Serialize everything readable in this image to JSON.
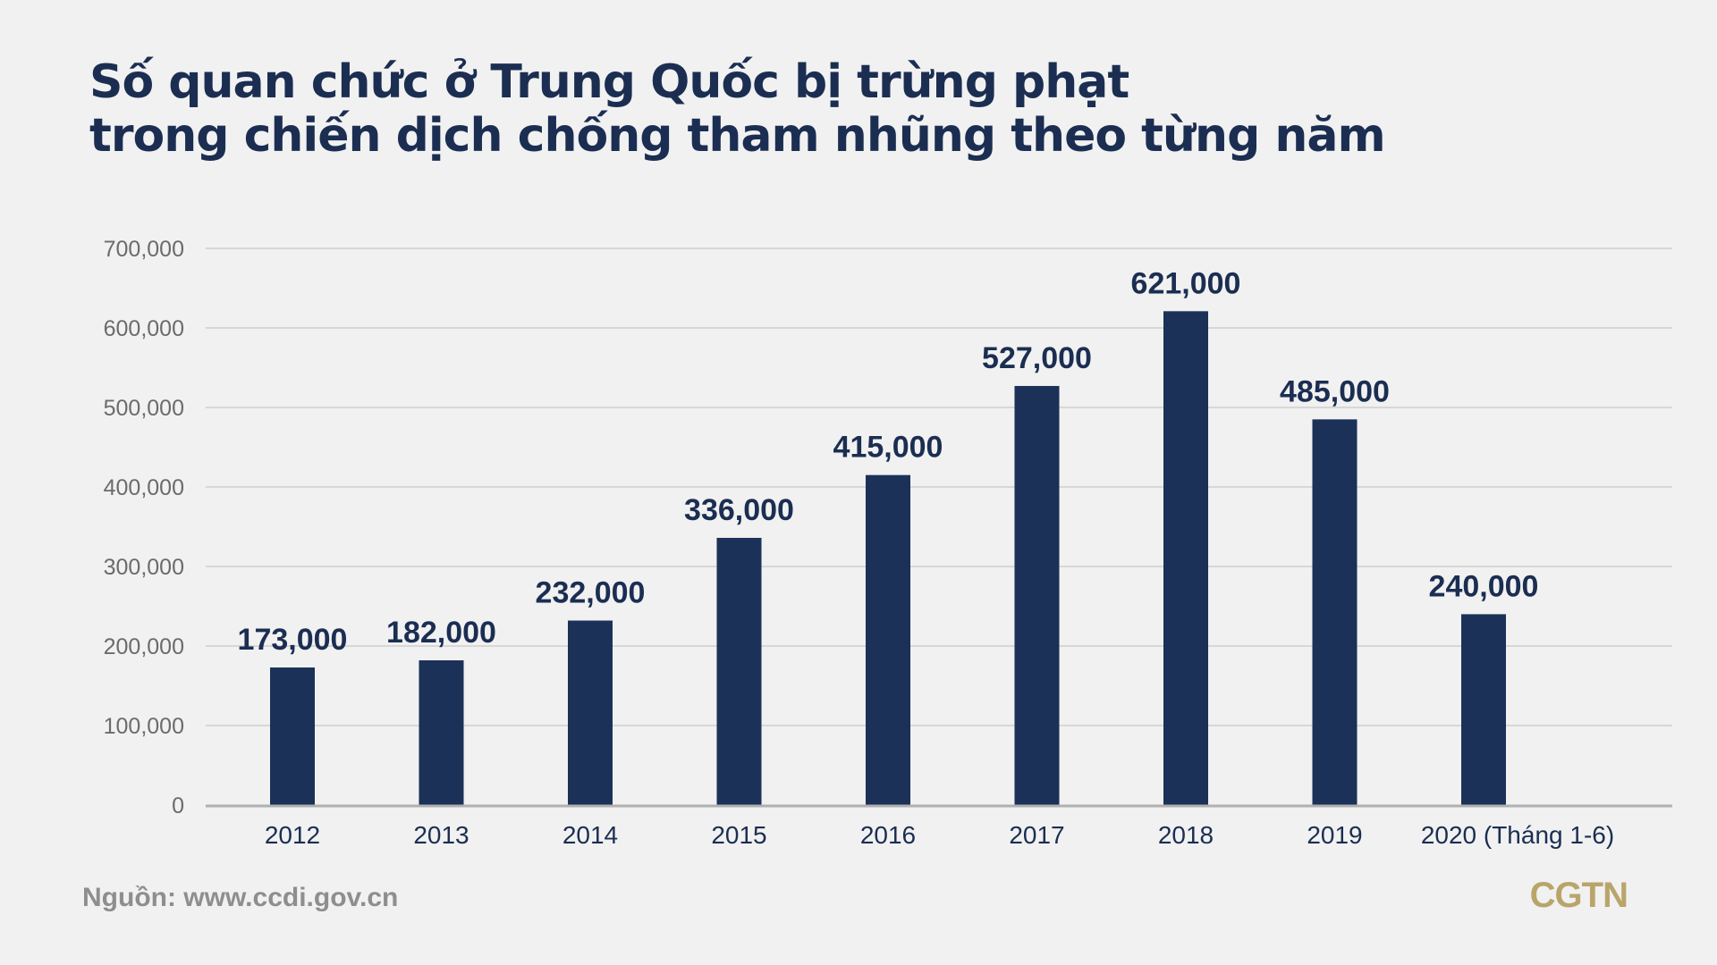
{
  "chart_data": {
    "type": "bar",
    "title_lines": [
      "Số quan chức ở Trung Quốc bị trừng phạt",
      "trong chiến dịch chống tham nhũng theo từng năm"
    ],
    "categories": [
      "2012",
      "2013",
      "2014",
      "2015",
      "2016",
      "2017",
      "2018",
      "2019",
      "2020 (Tháng 1-6)"
    ],
    "values": [
      173000,
      182000,
      232000,
      336000,
      415000,
      527000,
      621000,
      485000,
      240000
    ],
    "data_labels": [
      "173,000",
      "182,000",
      "232,000",
      "336,000",
      "415,000",
      "527,000",
      "621,000",
      "485,000",
      "240,000"
    ],
    "y_ticks": [
      "0",
      "100,000",
      "200,000",
      "300,000",
      "400,000",
      "500,000",
      "600,000",
      "700,000"
    ],
    "ylim": [
      0,
      700000
    ],
    "grid": true,
    "legend": "none",
    "xlabel": "",
    "ylabel": "",
    "colors": {
      "bar": "#1b3158",
      "title": "#1b2e52",
      "grid": "#c8c8c8",
      "logo": "#b9a56a",
      "background": "#f1f1f1"
    }
  },
  "footer": {
    "source": "Nguồn: www.ccdi.gov.cn",
    "logo": "CGTN"
  }
}
